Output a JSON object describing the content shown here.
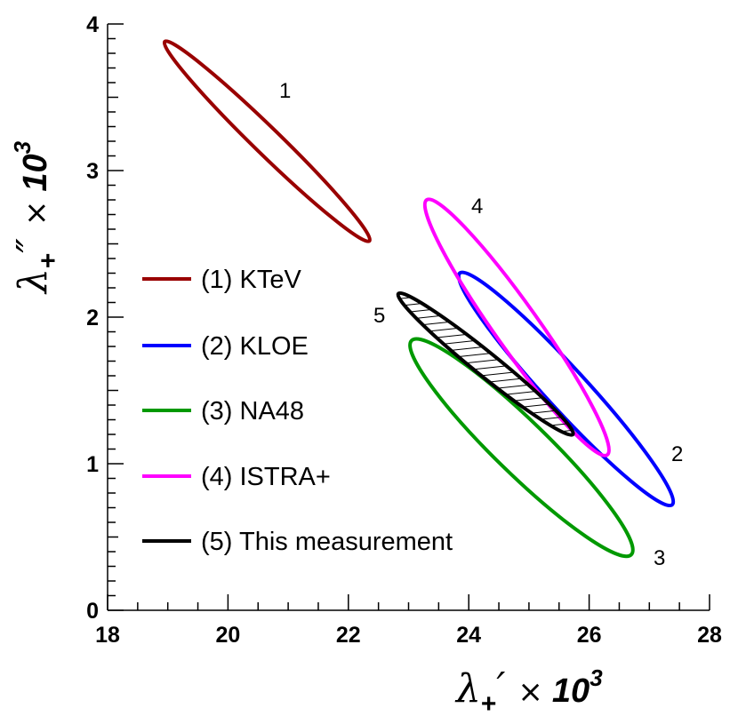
{
  "chart_data": {
    "type": "contour",
    "xlim": [
      18,
      28
    ],
    "ylim": [
      0,
      4
    ],
    "x_ticks": [
      "18",
      "20",
      "22",
      "24",
      "26",
      "28"
    ],
    "y_ticks": [
      "0",
      "1",
      "2",
      "3",
      "4"
    ],
    "xlabel": {
      "symbol": "λ",
      "sub": "+",
      "prime": "′",
      "times": "×",
      "ten": "10",
      "exp": "3"
    },
    "ylabel": {
      "symbol": "λ",
      "sub": "+",
      "prime": "″",
      "times": "×",
      "ten": "10",
      "exp": "3"
    },
    "series": [
      {
        "id": 1,
        "name": "(1) KTeV",
        "color": "#990000",
        "number_label": "1",
        "center": [
          20.65,
          3.2
        ],
        "ends": [
          [
            18.95,
            3.88
          ],
          [
            22.35,
            2.52
          ]
        ],
        "half_width": 0.09,
        "hatched": false
      },
      {
        "id": 2,
        "name": "(2) KLOE",
        "color": "#0000ff",
        "number_label": "2",
        "center": [
          25.62,
          1.51
        ],
        "ends": [
          [
            23.85,
            2.3
          ],
          [
            27.38,
            0.72
          ]
        ],
        "half_width": 0.14,
        "hatched": false
      },
      {
        "id": 3,
        "name": "(3) NA48",
        "color": "#009900",
        "number_label": "3",
        "center": [
          24.88,
          1.11
        ],
        "ends": [
          [
            23.05,
            1.84
          ],
          [
            26.7,
            0.38
          ]
        ],
        "half_width": 0.18,
        "hatched": false
      },
      {
        "id": 4,
        "name": "(4) ISTRA+",
        "color": "#ff00ff",
        "number_label": "4",
        "center": [
          24.8,
          1.93
        ],
        "ends": [
          [
            23.3,
            2.8
          ],
          [
            26.3,
            1.06
          ]
        ],
        "half_width": 0.15,
        "hatched": false
      },
      {
        "id": 5,
        "name": "(5) This measurement",
        "color": "#000000",
        "number_label": "5",
        "center": [
          24.28,
          1.68
        ],
        "ends": [
          [
            22.83,
            2.16
          ],
          [
            25.73,
            1.2
          ]
        ],
        "half_width": 0.08,
        "hatched": true
      }
    ]
  }
}
